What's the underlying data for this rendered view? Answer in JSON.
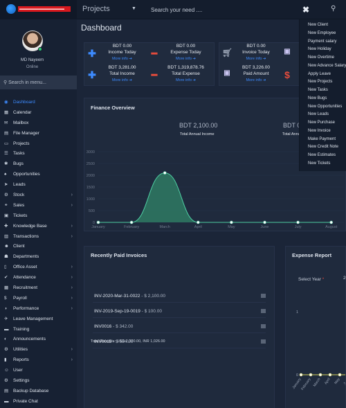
{
  "topbar": {
    "logo_text": "▬▬▬▬▬▬▬▬▬▬▬▬▬",
    "projects_label": "Projects",
    "search_placeholder": "Search your need ....",
    "close_glyph": "✖",
    "search_glyph": "⚲"
  },
  "user": {
    "name": "MD Nayeem",
    "status": "Online"
  },
  "sidebar": {
    "search_placeholder": "Search in menu...",
    "items": [
      {
        "label": "Dashboard",
        "icon": "◉",
        "caret": ""
      },
      {
        "label": "Calendar",
        "icon": "▦",
        "caret": ""
      },
      {
        "label": "Mailbox",
        "icon": "✉",
        "caret": ""
      },
      {
        "label": "File Manager",
        "icon": "▤",
        "caret": ""
      },
      {
        "label": "Projects",
        "icon": "▭",
        "caret": ""
      },
      {
        "label": "Tasks",
        "icon": "☰",
        "caret": ""
      },
      {
        "label": "Bugs",
        "icon": "✱",
        "caret": ""
      },
      {
        "label": "Opportunities",
        "icon": "♠",
        "caret": ""
      },
      {
        "label": "Leads",
        "icon": "➤",
        "caret": ""
      },
      {
        "label": "Stock",
        "icon": "⚙",
        "caret": "›"
      },
      {
        "label": "Sales",
        "icon": "⚭",
        "caret": "›"
      },
      {
        "label": "Tickets",
        "icon": "▣",
        "caret": ""
      },
      {
        "label": "Knowledge Base",
        "icon": "✚",
        "caret": "›"
      },
      {
        "label": "Transactions",
        "icon": "▥",
        "caret": "›"
      },
      {
        "label": "Client",
        "icon": "☻",
        "caret": ""
      },
      {
        "label": "Departments",
        "icon": "☗",
        "caret": ""
      },
      {
        "label": "Office Asset",
        "icon": "▯",
        "caret": "›"
      },
      {
        "label": "Attendance",
        "icon": "✔",
        "caret": "›"
      },
      {
        "label": "Recruitment",
        "icon": "▩",
        "caret": "›"
      },
      {
        "label": "Payroll",
        "icon": "$",
        "caret": "›"
      },
      {
        "label": "Performance",
        "icon": "◑",
        "caret": "›"
      },
      {
        "label": "Leave Management",
        "icon": "✈",
        "caret": ""
      },
      {
        "label": "Training",
        "icon": "▬",
        "caret": ""
      },
      {
        "label": "Announcements",
        "icon": "◐",
        "caret": ""
      },
      {
        "label": "Utilities",
        "icon": "⚙",
        "caret": "›"
      },
      {
        "label": "Reports",
        "icon": "▮",
        "caret": "›"
      },
      {
        "label": "User",
        "icon": "☺",
        "caret": ""
      },
      {
        "label": "Settings",
        "icon": "⚙",
        "caret": ""
      },
      {
        "label": "Backup Database",
        "icon": "▤",
        "caret": ""
      },
      {
        "label": "Private Chat",
        "icon": "▬",
        "caret": ""
      }
    ]
  },
  "dashboard": {
    "title": "Dashboard",
    "stats": {
      "income_today_value": "BDT 0.00",
      "income_today_label": "Income Today",
      "expense_today_value": "BDT 0.00",
      "expense_today_label": "Expense Today",
      "total_income_value": "BDT 3,281.00",
      "total_income_label": "Total Income",
      "total_expense_value": "BDT 1,319,878.76",
      "total_expense_label": "Total Expense",
      "invoice_today_value": "BDT 0.00",
      "invoice_today_label": "Invoice Today",
      "paid_amount_value": "BDT 3,226.00",
      "paid_amount_label": "Paid Amount",
      "more_info": "More info ➔"
    },
    "finance": {
      "title": "Finance Overview",
      "total_annual_income_value": "BDT 2,100.00",
      "total_annual_income_label": "Total Annual Income",
      "second_value": "BDT 0",
      "second_label": "Total Annu"
    },
    "invoices": {
      "title": "Recently Paid Invoices",
      "items": [
        {
          "number": "INV-2020-Mar-31-0022",
          "amount": " - $ 2,100.00"
        },
        {
          "number": "INV-2019-Sep-19-0019",
          "amount": " - $ 100.00"
        },
        {
          "number": "INV0016",
          "amount": " - $ 342.00"
        },
        {
          "number": "INV0015",
          "amount": " - $ 684.00"
        }
      ],
      "total_receipts": "Total Receipts: USD 2,200.00, INR 1,026.00"
    },
    "expense": {
      "title": "Expense Report",
      "select_year_label": "Select Year",
      "required_mark": "*",
      "year_value": "20",
      "y_top": "1",
      "y_bottom": "0"
    }
  },
  "dropdown": {
    "items": [
      "New Client",
      "New Employee",
      "Payment salary",
      "New Holiday",
      "New Overtime",
      "New Advance Salary",
      "Apply Leave",
      "New Projects",
      "New Tasks",
      "New Bugs",
      "New Opportunities",
      "New Leads",
      "New Purchase",
      "New Invoice",
      "Make Payment",
      "New Credit Note",
      "New Estimates",
      "New Tickets"
    ]
  },
  "chart_data": [
    {
      "type": "area",
      "title": "Finance Overview",
      "categories": [
        "January",
        "February",
        "March",
        "April",
        "May",
        "June",
        "July",
        "August"
      ],
      "series": [
        {
          "name": "Total Annual Income",
          "values": [
            0,
            0,
            2100,
            0,
            0,
            0,
            0,
            0
          ]
        }
      ],
      "ylim": [
        0,
        3000
      ],
      "yticks": [
        0,
        500,
        1000,
        1500,
        2000,
        2500,
        3000
      ],
      "colors": {
        "fill": "#2f7a63",
        "line": "#4fd0a4"
      }
    },
    {
      "type": "line",
      "title": "Expense Report",
      "categories": [
        "January",
        "February",
        "March",
        "April",
        "May",
        "June"
      ],
      "series": [
        {
          "name": "",
          "values": [
            0,
            0,
            0,
            0,
            0,
            0
          ]
        }
      ],
      "ylim": [
        0,
        1
      ],
      "colors": {
        "line": "#d4d25a"
      }
    }
  ]
}
